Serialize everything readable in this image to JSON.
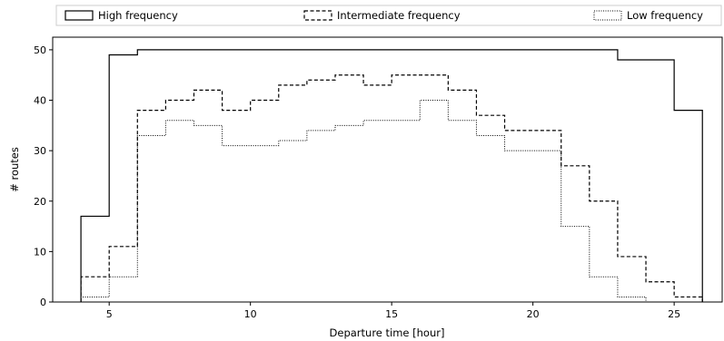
{
  "chart_data": {
    "type": "step",
    "xlabel": "Departure time [hour]",
    "ylabel": "# routes",
    "xlim": [
      3,
      26.7
    ],
    "ylim": [
      0,
      52.5
    ],
    "xticks": [
      5,
      10,
      15,
      20,
      25
    ],
    "yticks": [
      0,
      10,
      20,
      30,
      40,
      50
    ],
    "grid": false,
    "legend_position": "top",
    "bin_edges": [
      4,
      5,
      6,
      7,
      8,
      9,
      10,
      11,
      12,
      13,
      14,
      15,
      16,
      17,
      18,
      19,
      20,
      21,
      22,
      23,
      24,
      25,
      26
    ],
    "series": [
      {
        "name": "High frequency",
        "style": "solid",
        "values": [
          17,
          49,
          50,
          50,
          50,
          50,
          50,
          50,
          50,
          50,
          50,
          50,
          50,
          50,
          50,
          50,
          50,
          50,
          50,
          48,
          48,
          38
        ]
      },
      {
        "name": "Intermediate frequency",
        "style": "dashed",
        "values": [
          5,
          11,
          38,
          40,
          42,
          38,
          40,
          43,
          44,
          45,
          43,
          45,
          45,
          42,
          37,
          34,
          34,
          27,
          20,
          9,
          4,
          1
        ]
      },
      {
        "name": "Low frequency",
        "style": "dotted",
        "values": [
          1,
          5,
          33,
          36,
          35,
          31,
          31,
          32,
          34,
          35,
          36,
          36,
          40,
          36,
          33,
          30,
          30,
          15,
          5,
          1,
          0,
          0
        ]
      }
    ]
  }
}
